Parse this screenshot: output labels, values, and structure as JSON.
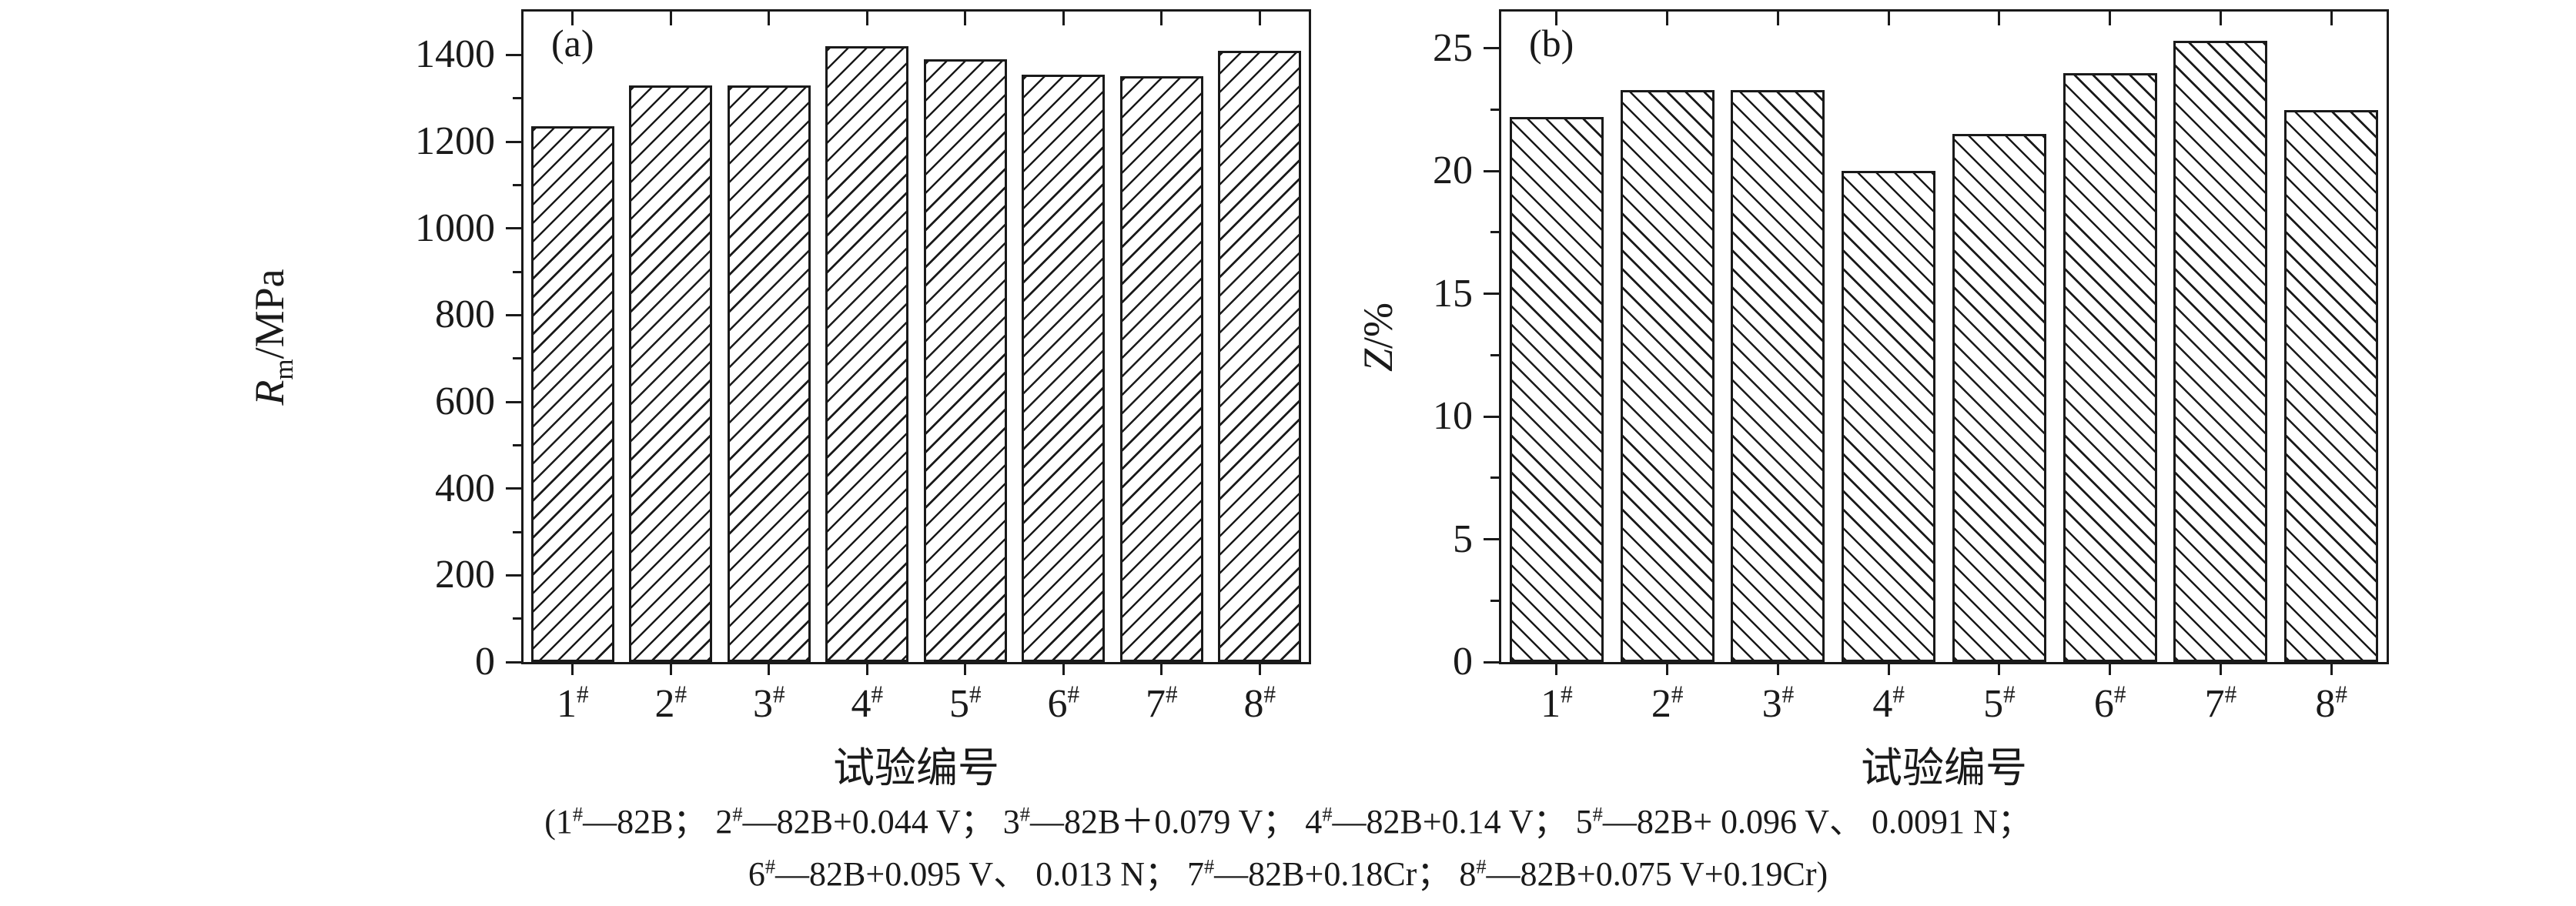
{
  "figure": {
    "caption": {
      "line1": "(1#—82B； 2#—82B+0.044 V； 3#—82B＋0.079 V； 4#—82B+0.14 V； 5#—82B+ 0.096 V、 0.0091 N；",
      "line2": "6#—82B+0.095 V、 0.013 N； 7#—82B+0.18Cr； 8#—82B+0.075 V+0.19Cr)"
    }
  },
  "chart_data": [
    {
      "type": "bar",
      "panel_label": "(a)",
      "categories": [
        "1#",
        "2#",
        "3#",
        "4#",
        "5#",
        "6#",
        "7#",
        "8#"
      ],
      "values": [
        1235,
        1330,
        1330,
        1420,
        1390,
        1355,
        1350,
        1410
      ],
      "xlabel": "试验编号",
      "ylabel": "Rm/MPa",
      "ylabel_parts": {
        "italic": "R",
        "sub": "m",
        "rest": "/MPa"
      },
      "ylim": [
        0,
        1500
      ],
      "ytick_step": 200,
      "yminor_step": 100,
      "grid": false,
      "legend": "none",
      "hatch": "/",
      "bar_fill": "#ffffff",
      "bar_edge": "#1a1a1a"
    },
    {
      "type": "bar",
      "panel_label": "(b)",
      "categories": [
        "1#",
        "2#",
        "3#",
        "4#",
        "5#",
        "6#",
        "7#",
        "8#"
      ],
      "values": [
        22.2,
        23.3,
        23.3,
        20,
        21.5,
        24,
        25.3,
        22.5
      ],
      "xlabel": "试验编号",
      "ylabel": "Z/%",
      "ylabel_parts": {
        "italic": "Z",
        "sub": "",
        "rest": "/%"
      },
      "ylim": [
        0,
        26.5
      ],
      "ytick_step": 5,
      "yminor_step": 2.5,
      "grid": false,
      "legend": "none",
      "hatch": "\\",
      "bar_fill": "#ffffff",
      "bar_edge": "#1a1a1a"
    }
  ]
}
